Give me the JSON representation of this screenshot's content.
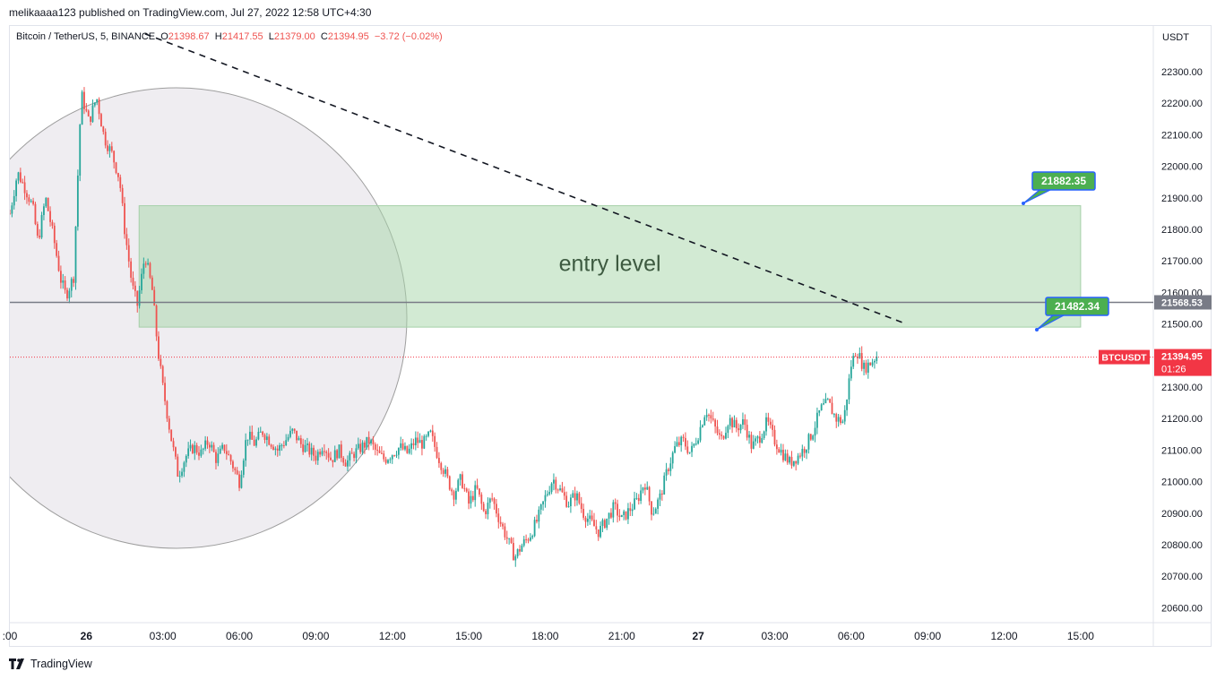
{
  "header": {
    "published_line": "melikaaaa123 published on TradingView.com, Jul 27, 2022 12:58 UTC+4:30"
  },
  "legend": {
    "symbol": "Bitcoin / TetherUS, 5, BINANCE",
    "o_label": "O",
    "o_value": "21398.67",
    "h_label": "H",
    "h_value": "21417.55",
    "l_label": "L",
    "l_value": "21379.00",
    "c_label": "C",
    "c_value": "21394.95",
    "change": "−3.72 (−0.02%)"
  },
  "price_axis": {
    "currency": "USDT",
    "ticks": [
      "22300.00",
      "22200.00",
      "22100.00",
      "22000.00",
      "21900.00",
      "21800.00",
      "21700.00",
      "21600.00",
      "21500.00",
      "21400.00",
      "21300.00",
      "21200.00",
      "21100.00",
      "21000.00",
      "20900.00",
      "20800.00",
      "20700.00",
      "20600.00"
    ],
    "horizontal_line_label": "21568.53",
    "last_price_label": "21394.95",
    "countdown": "01:26",
    "symbol_tag": "BTCUSDT"
  },
  "time_axis": {
    "ticks": [
      ":00",
      "26",
      "03:00",
      "06:00",
      "09:00",
      "12:00",
      "15:00",
      "18:00",
      "21:00",
      "27",
      "03:00",
      "06:00",
      "09:00",
      "12:00",
      "15:00"
    ]
  },
  "annotations": {
    "zone_text": "entry level",
    "upper_callout": "21882.35",
    "lower_callout": "21482.34"
  },
  "footer": {
    "brand": "TradingView"
  },
  "colors": {
    "up": "#26a69a",
    "down": "#ef5350",
    "zone_fill": "#c8e6c9",
    "callout": "#4caf50",
    "callout_border": "#2962ff",
    "hline": "#787b86",
    "last_price": "#f23645"
  },
  "chart_data": {
    "type": "candlestick",
    "symbol": "Bitcoin / TetherUS",
    "interval": "5",
    "exchange": "BINANCE",
    "ylim": [
      20550,
      22400
    ],
    "x_tick_labels": [
      ":00",
      "26",
      "03:00",
      "06:00",
      "09:00",
      "12:00",
      "15:00",
      "18:00",
      "21:00",
      "27",
      "03:00",
      "06:00",
      "09:00",
      "12:00",
      "15:00"
    ],
    "price_path": [
      [
        0.0,
        21850
      ],
      [
        0.3,
        21980
      ],
      [
        0.6,
        21930
      ],
      [
        0.9,
        21870
      ],
      [
        1.1,
        21760
      ],
      [
        1.4,
        21900
      ],
      [
        1.7,
        21780
      ],
      [
        2.0,
        21640
      ],
      [
        2.2,
        21590
      ],
      [
        2.5,
        21650
      ],
      [
        2.8,
        22230
      ],
      [
        3.1,
        22140
      ],
      [
        3.4,
        22220
      ],
      [
        3.7,
        22090
      ],
      [
        4.0,
        22040
      ],
      [
        4.3,
        21960
      ],
      [
        4.5,
        21800
      ],
      [
        4.8,
        21620
      ],
      [
        5.0,
        21560
      ],
      [
        5.3,
        21720
      ],
      [
        5.6,
        21600
      ],
      [
        5.8,
        21420
      ],
      [
        6.0,
        21300
      ],
      [
        6.3,
        21150
      ],
      [
        6.6,
        21020
      ],
      [
        6.9,
        21080
      ],
      [
        7.2,
        21110
      ],
      [
        7.5,
        21090
      ],
      [
        7.8,
        21130
      ],
      [
        8.1,
        21070
      ],
      [
        8.4,
        21110
      ],
      [
        8.7,
        21060
      ],
      [
        9.0,
        21000
      ],
      [
        9.3,
        21150
      ],
      [
        9.6,
        21120
      ],
      [
        9.9,
        21160
      ],
      [
        10.2,
        21130
      ],
      [
        10.5,
        21100
      ],
      [
        10.8,
        21130
      ],
      [
        11.1,
        21160
      ],
      [
        11.4,
        21120
      ],
      [
        11.7,
        21100
      ],
      [
        12.0,
        21080
      ],
      [
        12.3,
        21120
      ],
      [
        12.6,
        21070
      ],
      [
        12.9,
        21100
      ],
      [
        13.2,
        21060
      ],
      [
        13.5,
        21090
      ],
      [
        13.8,
        21110
      ],
      [
        14.1,
        21130
      ],
      [
        14.4,
        21090
      ],
      [
        14.7,
        21070
      ],
      [
        15.0,
        21090
      ],
      [
        15.3,
        21110
      ],
      [
        15.6,
        21090
      ],
      [
        15.9,
        21130
      ],
      [
        16.2,
        21120
      ],
      [
        16.5,
        21150
      ],
      [
        16.8,
        21080
      ],
      [
        17.1,
        21020
      ],
      [
        17.4,
        20960
      ],
      [
        17.7,
        21010
      ],
      [
        18.0,
        20930
      ],
      [
        18.3,
        20980
      ],
      [
        18.6,
        20900
      ],
      [
        18.9,
        20950
      ],
      [
        19.2,
        20880
      ],
      [
        19.5,
        20820
      ],
      [
        19.8,
        20760
      ],
      [
        20.1,
        20800
      ],
      [
        20.4,
        20830
      ],
      [
        20.7,
        20880
      ],
      [
        21.0,
        20950
      ],
      [
        21.3,
        21010
      ],
      [
        21.6,
        20970
      ],
      [
        21.9,
        20930
      ],
      [
        22.2,
        20960
      ],
      [
        22.5,
        20900
      ],
      [
        22.8,
        20870
      ],
      [
        23.1,
        20840
      ],
      [
        23.4,
        20880
      ],
      [
        23.7,
        20920
      ],
      [
        24.0,
        20880
      ],
      [
        24.3,
        20910
      ],
      [
        24.6,
        20940
      ],
      [
        24.9,
        21000
      ],
      [
        25.2,
        20900
      ],
      [
        25.5,
        20950
      ],
      [
        25.8,
        21040
      ],
      [
        26.1,
        21110
      ],
      [
        26.4,
        21130
      ],
      [
        26.7,
        21090
      ],
      [
        27.0,
        21150
      ],
      [
        27.3,
        21230
      ],
      [
        27.6,
        21180
      ],
      [
        27.9,
        21130
      ],
      [
        28.2,
        21200
      ],
      [
        28.5,
        21170
      ],
      [
        28.8,
        21190
      ],
      [
        29.1,
        21110
      ],
      [
        29.4,
        21140
      ],
      [
        29.7,
        21190
      ],
      [
        30.0,
        21130
      ],
      [
        30.3,
        21090
      ],
      [
        30.6,
        21060
      ],
      [
        30.9,
        21080
      ],
      [
        31.2,
        21110
      ],
      [
        31.5,
        21160
      ],
      [
        31.8,
        21230
      ],
      [
        32.1,
        21250
      ],
      [
        32.4,
        21200
      ],
      [
        32.7,
        21190
      ],
      [
        33.0,
        21370
      ],
      [
        33.2,
        21420
      ],
      [
        33.5,
        21360
      ],
      [
        33.8,
        21380
      ],
      [
        34.0,
        21400
      ]
    ],
    "horizontal_line": 21568.53,
    "last_price": 21394.95,
    "entry_zone": {
      "label": "entry level",
      "top": 21875,
      "bottom": 21490
    },
    "callouts": [
      21882.35,
      21482.34
    ],
    "trendline": {
      "style": "dashed",
      "from": [
        5.3,
        22420
      ],
      "to": [
        35.0,
        21505
      ]
    }
  }
}
